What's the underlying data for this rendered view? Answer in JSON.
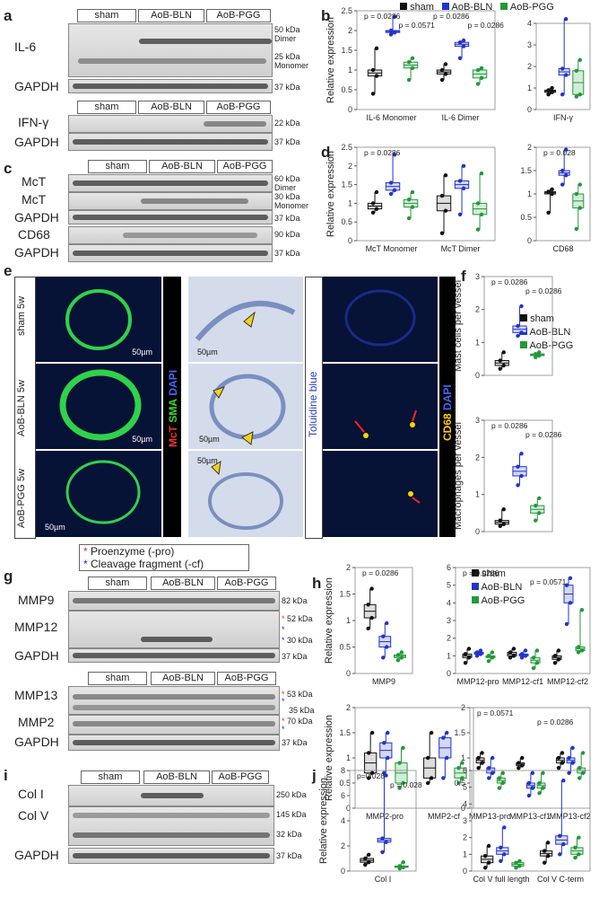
{
  "panels": {
    "a": "a",
    "b": "b",
    "c": "c",
    "d": "d",
    "e": "e",
    "f": "f",
    "g": "g",
    "h": "h",
    "i": "i",
    "j": "j"
  },
  "groups": {
    "sham": "sham",
    "bln": "AoB-BLN",
    "pgg": "AoB-PGG"
  },
  "colors": {
    "sham": "#111111",
    "bln": "#2233cc",
    "pgg": "#22993a"
  },
  "blots": {
    "il6": "IL-6",
    "gapdh": "GAPDH",
    "ifng": "IFN-γ",
    "mct": "McT",
    "cd68": "CD68",
    "mmp9": "MMP9",
    "mmp12": "MMP12",
    "mmp13": "MMP13",
    "mmp2": "MMP2",
    "col1": "Col I",
    "col5": "Col V"
  },
  "kda": {
    "k50": "50 kDa",
    "dimer": "Dimer",
    "k25": "25 kDa",
    "monomer": "Monomer",
    "k37": "37 kDa",
    "k22": "22 kDa",
    "k60": "60 kDa",
    "k30": "30 kDa",
    "k90": "90 kDa",
    "k82": "82 kDa",
    "k52": "52 kDa",
    "k53": "53 kDa",
    "k35": "35 kDa",
    "k70": "70 kDa",
    "k250": "250 kDa",
    "k145": "145 kDa",
    "k32": "32 kDa"
  },
  "legend_g": {
    "star": "*",
    "pro": "Proenzyme (-pro)",
    "cf": "Cleavage fragment (-cf)"
  },
  "micro": {
    "row_sham": "sham 5w",
    "row_bln": "AoB-BLN 5w",
    "row_pgg": "AoB-PGG 5w",
    "scale": "50µm",
    "stain_mct": "McT",
    "stain_sma": "SMA",
    "stain_dapi": "DAPI",
    "stain_tb": "Toluidine blue",
    "stain_cd68": "CD68"
  },
  "chart_data": [
    {
      "type": "box",
      "id": "b1",
      "ylabel": "Relative expression",
      "ylim": [
        0,
        2.5
      ],
      "ticks": [
        0,
        0.5,
        1,
        1.5,
        2,
        2.5
      ],
      "categories": [
        "IL-6 Monomer",
        "IL-6 Dimer"
      ],
      "series": [
        {
          "name": "sham",
          "values": [
            [
              0.4,
              0.85,
              1.0,
              1.55
            ],
            [
              0.75,
              0.9,
              1.0,
              1.15
            ]
          ]
        },
        {
          "name": "AoB-BLN",
          "values": [
            [
              1.9,
              1.95,
              2.0,
              2.35
            ],
            [
              1.3,
              1.6,
              1.7,
              1.75
            ]
          ]
        },
        {
          "name": "AoB-PGG",
          "values": [
            [
              0.75,
              1.05,
              1.2,
              1.3
            ],
            [
              0.65,
              0.8,
              1.0,
              1.05
            ]
          ]
        }
      ],
      "annotations": [
        "p = 0.0286",
        "p = 0.0571",
        "p = 0.0286",
        "p = 0.0286"
      ]
    },
    {
      "type": "box",
      "id": "b2",
      "ylim": [
        0,
        4
      ],
      "ticks": [
        0,
        1,
        2,
        3,
        4
      ],
      "categories": [
        "IFN-γ"
      ],
      "series": [
        {
          "name": "sham",
          "values": [
            [
              0.7,
              0.8,
              0.9,
              1.0
            ]
          ]
        },
        {
          "name": "AoB-BLN",
          "values": [
            [
              0.7,
              1.6,
              1.9,
              4.2
            ]
          ]
        },
        {
          "name": "AoB-PGG",
          "values": [
            [
              0.6,
              0.7,
              1.8,
              2.3
            ]
          ]
        }
      ]
    },
    {
      "type": "box",
      "id": "d1",
      "ylabel": "Relative expression",
      "ylim": [
        0,
        2.5
      ],
      "ticks": [
        0,
        0.5,
        1,
        1.5,
        2,
        2.5
      ],
      "categories": [
        "McT Monomer",
        "McT Dimer"
      ],
      "series": [
        {
          "name": "sham",
          "values": [
            [
              0.75,
              0.85,
              1.0,
              1.3
            ],
            [
              0.2,
              0.8,
              1.2,
              1.75
            ]
          ]
        },
        {
          "name": "AoB-BLN",
          "values": [
            [
              1.25,
              1.35,
              1.55,
              2.3
            ],
            [
              0.7,
              1.4,
              1.6,
              2.0
            ]
          ]
        },
        {
          "name": "AoB-PGG",
          "values": [
            [
              0.6,
              0.9,
              1.1,
              1.3
            ],
            [
              0.3,
              0.7,
              1.0,
              1.8
            ]
          ]
        }
      ],
      "annotations": [
        "p = 0.0286"
      ]
    },
    {
      "type": "box",
      "id": "d2",
      "ylim": [
        0,
        2
      ],
      "ticks": [
        0,
        0.5,
        1,
        1.5,
        2
      ],
      "categories": [
        "CD68"
      ],
      "series": [
        {
          "name": "sham",
          "values": [
            [
              0.6,
              1.0,
              1.05,
              1.1
            ]
          ]
        },
        {
          "name": "AoB-BLN",
          "values": [
            [
              1.2,
              1.4,
              1.5,
              1.95
            ]
          ]
        },
        {
          "name": "AoB-PGG",
          "values": [
            [
              0.25,
              0.7,
              1.0,
              1.2
            ]
          ]
        }
      ],
      "annotations": [
        "p = 0.028"
      ]
    },
    {
      "type": "box",
      "id": "f1",
      "ylabel": "Mast cells per vessel",
      "ylim": [
        0,
        3
      ],
      "ticks": [
        0,
        1,
        2,
        3
      ],
      "categories": [
        ""
      ],
      "series": [
        {
          "name": "sham",
          "values": [
            [
              0.2,
              0.3,
              0.45,
              0.7
            ]
          ]
        },
        {
          "name": "AoB-BLN",
          "values": [
            [
              1.2,
              1.3,
              1.5,
              2.1
            ]
          ]
        },
        {
          "name": "AoB-PGG",
          "values": [
            [
              0.55,
              0.6,
              0.65,
              0.7
            ]
          ]
        }
      ],
      "annotations": [
        "p = 0.0286",
        "p = 0.0286"
      ]
    },
    {
      "type": "box",
      "id": "f2",
      "ylabel": "Macrophages per vessel",
      "ylim": [
        0,
        3
      ],
      "ticks": [
        0,
        1,
        2,
        3
      ],
      "categories": [
        ""
      ],
      "series": [
        {
          "name": "sham",
          "values": [
            [
              0.15,
              0.2,
              0.3,
              0.6
            ]
          ]
        },
        {
          "name": "AoB-BLN",
          "values": [
            [
              1.25,
              1.5,
              1.75,
              2.1
            ]
          ]
        },
        {
          "name": "AoB-PGG",
          "values": [
            [
              0.3,
              0.5,
              0.7,
              0.9
            ]
          ]
        }
      ],
      "annotations": [
        "p = 0.0286",
        "p = 0.0286"
      ]
    },
    {
      "type": "box",
      "id": "h1",
      "ylabel": "Relative expression",
      "ylim": [
        0,
        2
      ],
      "ticks": [
        0,
        0.5,
        1,
        1.5,
        2
      ],
      "categories": [
        "MMP9"
      ],
      "series": [
        {
          "name": "sham",
          "values": [
            [
              0.85,
              1.05,
              1.3,
              1.6
            ]
          ]
        },
        {
          "name": "AoB-BLN",
          "values": [
            [
              0.3,
              0.5,
              0.7,
              0.95
            ]
          ]
        },
        {
          "name": "AoB-PGG",
          "values": [
            [
              0.25,
              0.3,
              0.35,
              0.4
            ]
          ]
        }
      ],
      "annotations": [
        "p = 0.0286"
      ]
    },
    {
      "type": "box",
      "id": "h2",
      "ylim": [
        0,
        6
      ],
      "ticks": [
        0,
        1,
        2,
        3,
        4,
        5,
        6
      ],
      "categories": [
        "MMP12-pro",
        "MMP12-cf1",
        "MMP12-cf2"
      ],
      "series": [
        {
          "name": "sham",
          "values": [
            [
              0.6,
              0.9,
              1.1,
              1.4
            ],
            [
              0.9,
              1.0,
              1.2,
              1.4
            ],
            [
              0.6,
              0.8,
              1.0,
              1.3
            ]
          ]
        },
        {
          "name": "AoB-BLN",
          "values": [
            [
              1.0,
              1.1,
              1.2,
              1.3
            ],
            [
              0.9,
              1.0,
              1.1,
              1.3
            ],
            [
              2.8,
              4.0,
              5.0,
              5.4
            ]
          ]
        },
        {
          "name": "AoB-PGG",
          "values": [
            [
              0.7,
              0.9,
              1.0,
              1.2
            ],
            [
              0.3,
              0.6,
              0.9,
              1.3
            ],
            [
              1.2,
              1.3,
              1.5,
              3.6
            ]
          ]
        }
      ],
      "annotations": [
        "p = 0.0286",
        "p = 0.0571"
      ]
    },
    {
      "type": "box",
      "id": "h3",
      "ylabel": "Relative expression",
      "ylim": [
        0,
        2
      ],
      "ticks": [
        0,
        0.5,
        1,
        1.5,
        2
      ],
      "categories": [
        "MMP2-pro",
        "MMP2-cf"
      ],
      "series": [
        {
          "name": "sham",
          "values": [
            [
              0.6,
              0.7,
              1.1,
              1.5
            ],
            [
              0.5,
              0.6,
              1.0,
              1.5
            ]
          ]
        },
        {
          "name": "AoB-BLN",
          "values": [
            [
              0.7,
              1.0,
              1.3,
              1.5
            ],
            [
              0.6,
              1.0,
              1.4,
              1.5
            ]
          ]
        },
        {
          "name": "AoB-PGG",
          "values": [
            [
              0.4,
              0.5,
              0.9,
              1.2
            ],
            [
              0.5,
              0.6,
              0.8,
              0.9
            ]
          ]
        }
      ]
    },
    {
      "type": "box",
      "id": "h4",
      "ylim": [
        0,
        2
      ],
      "ticks": [
        0,
        0.5,
        1,
        1.5,
        2
      ],
      "categories": [
        "MMP13-pro",
        "MMP13-cf1",
        "MMP13-cf2"
      ],
      "series": [
        {
          "name": "sham",
          "values": [
            [
              0.8,
              0.9,
              1.0,
              1.1
            ],
            [
              0.8,
              0.85,
              0.9,
              1.0
            ],
            [
              0.8,
              0.9,
              1.0,
              1.1
            ]
          ]
        },
        {
          "name": "AoB-BLN",
          "values": [
            [
              0.6,
              0.7,
              0.8,
              1.0
            ],
            [
              0.25,
              0.4,
              0.5,
              0.7
            ],
            [
              0.7,
              0.9,
              1.0,
              1.2
            ]
          ]
        },
        {
          "name": "AoB-PGG",
          "values": [
            [
              0.4,
              0.5,
              0.6,
              0.7
            ],
            [
              0.3,
              0.4,
              0.5,
              0.7
            ],
            [
              0.6,
              0.7,
              0.8,
              1.1
            ]
          ]
        }
      ],
      "annotations": [
        "p = 0.0571",
        "p = 0.0286"
      ]
    },
    {
      "type": "box",
      "id": "j1",
      "ylabel": "Relative expression",
      "ylim": [
        0,
        8
      ],
      "ticks": [
        0,
        2,
        4,
        6,
        8
      ],
      "categories": [
        "Col I"
      ],
      "series": [
        {
          "name": "sham",
          "values": [
            [
              0.5,
              0.7,
              1.0,
              1.3
            ]
          ]
        },
        {
          "name": "AoB-BLN",
          "values": [
            [
              1.5,
              2.3,
              2.6,
              7.6
            ]
          ]
        },
        {
          "name": "AoB-PGG",
          "values": [
            [
              0.2,
              0.3,
              0.4,
              0.7
            ]
          ]
        }
      ],
      "annotations": [
        "p=0.028",
        "p = 0.028"
      ]
    },
    {
      "type": "box",
      "id": "j2",
      "ylim": [
        0,
        6
      ],
      "ticks": [
        0,
        1,
        2,
        3,
        4,
        5,
        6
      ],
      "categories": [
        "Col V full length",
        "Col V C-term"
      ],
      "series": [
        {
          "name": "sham",
          "values": [
            [
              0.2,
              0.5,
              0.9,
              1.5
            ],
            [
              0.5,
              0.9,
              1.2,
              1.7
            ]
          ]
        },
        {
          "name": "AoB-BLN",
          "values": [
            [
              0.6,
              1.0,
              1.4,
              2.6
            ],
            [
              1.0,
              1.6,
              2.1,
              5.4
            ]
          ]
        },
        {
          "name": "AoB-PGG",
          "values": [
            [
              0.2,
              0.3,
              0.5,
              0.6
            ],
            [
              0.8,
              1.0,
              1.4,
              2.0
            ]
          ]
        }
      ]
    }
  ]
}
